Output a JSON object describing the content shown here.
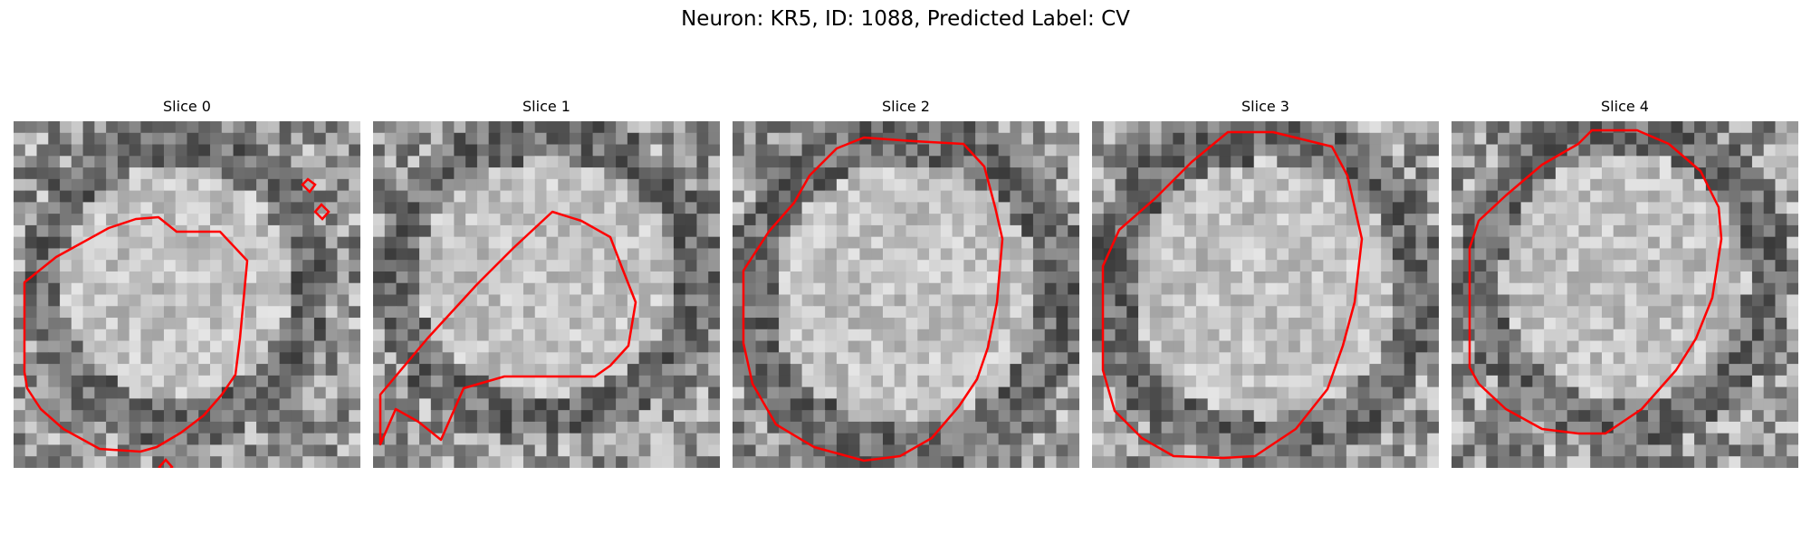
{
  "title": "Neuron: KR5, ID: 1088, Predicted Label: CV",
  "slices": [
    {
      "label": "Slice 0"
    },
    {
      "label": "Slice 1"
    },
    {
      "label": "Slice 2"
    },
    {
      "label": "Slice 3"
    },
    {
      "label": "Slice 4"
    }
  ],
  "colors": {
    "contour": "#ff0000",
    "colormap": "grayscale"
  }
}
